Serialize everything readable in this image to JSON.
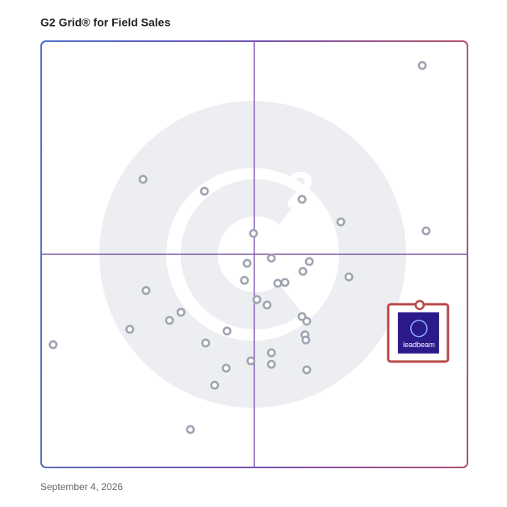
{
  "chart_data": {
    "type": "scatter",
    "title": "G2 Grid® for Field Sales",
    "date": "September 4, 2026",
    "xlim": [
      0,
      100
    ],
    "ylim": [
      0,
      100
    ],
    "color": "#a0a4b2",
    "x": [
      89.4,
      23.9,
      38.3,
      61.2,
      70.3,
      90.3,
      49.8,
      48.3,
      54.0,
      62.9,
      61.4,
      72.2,
      47.7,
      55.5,
      57.2,
      24.6,
      50.6,
      53.0,
      32.8,
      30.1,
      61.2,
      62.3,
      20.8,
      43.6,
      61.9,
      62.1,
      2.8,
      38.6,
      54.0,
      49.2,
      54.0,
      43.4,
      62.3,
      40.7,
      35.0
    ],
    "values": [
      94.3,
      67.6,
      64.8,
      62.9,
      57.6,
      55.5,
      54.9,
      47.9,
      49.1,
      48.3,
      46.0,
      44.7,
      43.9,
      43.2,
      43.4,
      41.5,
      39.4,
      38.1,
      36.4,
      34.5,
      35.4,
      34.3,
      32.4,
      32.0,
      31.1,
      29.9,
      28.8,
      29.2,
      26.9,
      25.0,
      24.2,
      23.3,
      22.9,
      19.3,
      8.9
    ],
    "highlight": {
      "name": "leadbeam",
      "x": 88.8,
      "y": 38.1,
      "color": "#b94a4a"
    }
  }
}
